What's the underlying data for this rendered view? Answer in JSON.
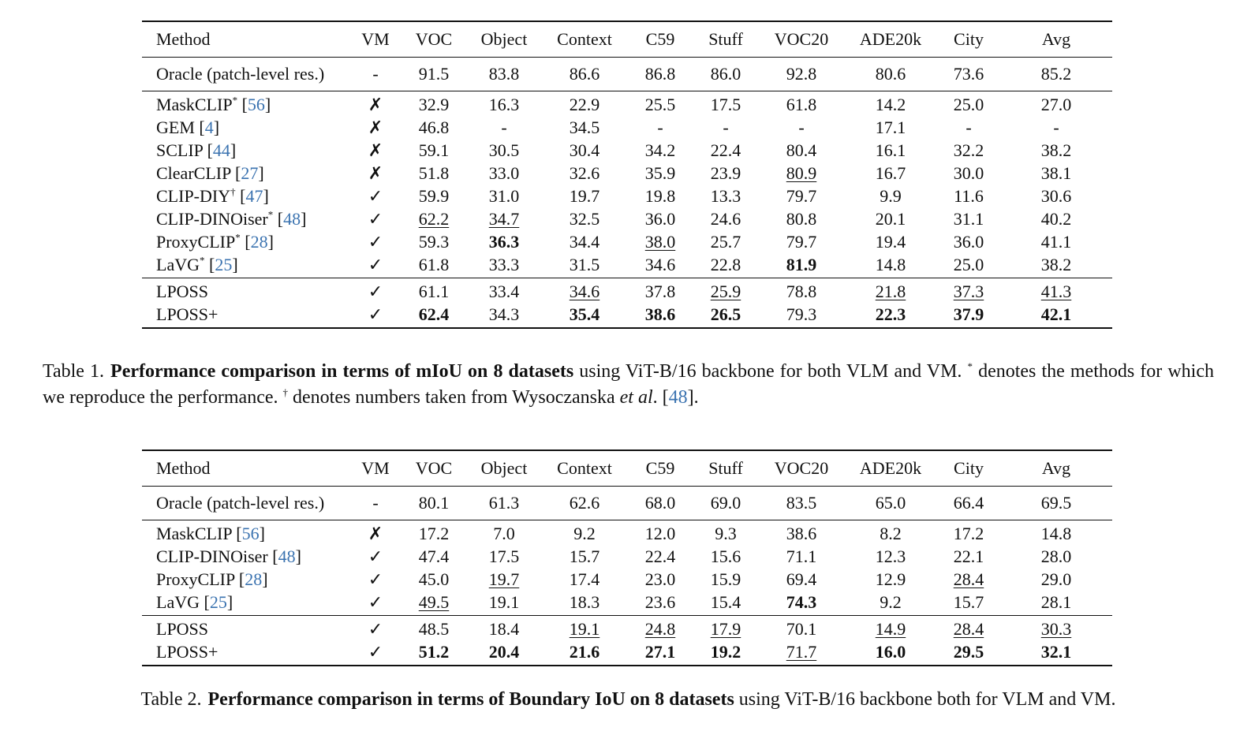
{
  "columns": [
    "Method",
    "VM",
    "VOC",
    "Object",
    "Context",
    "C59",
    "Stuff",
    "VOC20",
    "ADE20k",
    "City",
    "Avg"
  ],
  "table1": {
    "sections": [
      [
        {
          "name": "Oracle (patch-level res.)",
          "vm": "-",
          "vals": [
            "91.5",
            "83.8",
            "86.6",
            "86.8",
            "86.0",
            "92.8",
            "80.6",
            "73.6",
            "85.2"
          ],
          "bold": [],
          "under": []
        }
      ],
      [
        {
          "name": "MaskCLIP",
          "sup": "*",
          "ref": "56",
          "vm": "✗",
          "vals": [
            "32.9",
            "16.3",
            "22.9",
            "25.5",
            "17.5",
            "61.8",
            "14.2",
            "25.0",
            "27.0"
          ],
          "bold": [],
          "under": []
        },
        {
          "name": "GEM",
          "ref": "4",
          "vm": "✗",
          "vals": [
            "46.8",
            "-",
            "34.5",
            "-",
            "-",
            "-",
            "17.1",
            "-",
            "-"
          ],
          "bold": [],
          "under": []
        },
        {
          "name": "SCLIP",
          "ref": "44",
          "vm": "✗",
          "vals": [
            "59.1",
            "30.5",
            "30.4",
            "34.2",
            "22.4",
            "80.4",
            "16.1",
            "32.2",
            "38.2"
          ],
          "bold": [],
          "under": []
        },
        {
          "name": "ClearCLIP",
          "ref": "27",
          "vm": "✗",
          "vals": [
            "51.8",
            "33.0",
            "32.6",
            "35.9",
            "23.9",
            "80.9",
            "16.7",
            "30.0",
            "38.1"
          ],
          "bold": [],
          "under": [
            5
          ]
        },
        {
          "name": "CLIP-DIY",
          "sup": "†",
          "ref": "47",
          "vm": "✓",
          "vals": [
            "59.9",
            "31.0",
            "19.7",
            "19.8",
            "13.3",
            "79.7",
            "9.9",
            "11.6",
            "30.6"
          ],
          "bold": [],
          "under": []
        },
        {
          "name": "CLIP-DINOiser",
          "sup": "*",
          "ref": "48",
          "vm": "✓",
          "vals": [
            "62.2",
            "34.7",
            "32.5",
            "36.0",
            "24.6",
            "80.8",
            "20.1",
            "31.1",
            "40.2"
          ],
          "bold": [],
          "under": [
            0,
            1
          ]
        },
        {
          "name": "ProxyCLIP",
          "sup": "*",
          "ref": "28",
          "vm": "✓",
          "vals": [
            "59.3",
            "36.3",
            "34.4",
            "38.0",
            "25.7",
            "79.7",
            "19.4",
            "36.0",
            "41.1"
          ],
          "bold": [
            1
          ],
          "under": [
            3
          ]
        },
        {
          "name": "LaVG",
          "sup": "*",
          "ref": "25",
          "vm": "✓",
          "vals": [
            "61.8",
            "33.3",
            "31.5",
            "34.6",
            "22.8",
            "81.9",
            "14.8",
            "25.0",
            "38.2"
          ],
          "bold": [
            5
          ],
          "under": []
        }
      ],
      [
        {
          "name": "LPOSS",
          "vm": "✓",
          "vals": [
            "61.1",
            "33.4",
            "34.6",
            "37.8",
            "25.9",
            "78.8",
            "21.8",
            "37.3",
            "41.3"
          ],
          "bold": [],
          "under": [
            2,
            4,
            6,
            7,
            8
          ]
        },
        {
          "name": "LPOSS+",
          "vm": "✓",
          "vals": [
            "62.4",
            "34.3",
            "35.4",
            "38.6",
            "26.5",
            "79.3",
            "22.3",
            "37.9",
            "42.1"
          ],
          "bold": [
            0,
            2,
            3,
            4,
            6,
            7,
            8
          ],
          "under": []
        }
      ]
    ]
  },
  "table2": {
    "sections": [
      [
        {
          "name": "Oracle (patch-level res.)",
          "vm": "-",
          "vals": [
            "80.1",
            "61.3",
            "62.6",
            "68.0",
            "69.0",
            "83.5",
            "65.0",
            "66.4",
            "69.5"
          ],
          "bold": [],
          "under": []
        }
      ],
      [
        {
          "name": "MaskCLIP",
          "ref": "56",
          "vm": "✗",
          "vals": [
            "17.2",
            "7.0",
            "9.2",
            "12.0",
            "9.3",
            "38.6",
            "8.2",
            "17.2",
            "14.8"
          ],
          "bold": [],
          "under": []
        },
        {
          "name": "CLIP-DINOiser",
          "ref": "48",
          "vm": "✓",
          "vals": [
            "47.4",
            "17.5",
            "15.7",
            "22.4",
            "15.6",
            "71.1",
            "12.3",
            "22.1",
            "28.0"
          ],
          "bold": [],
          "under": []
        },
        {
          "name": "ProxyCLIP",
          "ref": "28",
          "vm": "✓",
          "vals": [
            "45.0",
            "19.7",
            "17.4",
            "23.0",
            "15.9",
            "69.4",
            "12.9",
            "28.4",
            "29.0"
          ],
          "bold": [],
          "under": [
            1,
            7
          ]
        },
        {
          "name": "LaVG",
          "ref": "25",
          "vm": "✓",
          "vals": [
            "49.5",
            "19.1",
            "18.3",
            "23.6",
            "15.4",
            "74.3",
            "9.2",
            "15.7",
            "28.1"
          ],
          "bold": [
            5
          ],
          "under": [
            0
          ]
        }
      ],
      [
        {
          "name": "LPOSS",
          "vm": "✓",
          "vals": [
            "48.5",
            "18.4",
            "19.1",
            "24.8",
            "17.9",
            "70.1",
            "14.9",
            "28.4",
            "30.3"
          ],
          "bold": [],
          "under": [
            2,
            3,
            4,
            6,
            7,
            8
          ]
        },
        {
          "name": "LPOSS+",
          "vm": "✓",
          "vals": [
            "51.2",
            "20.4",
            "21.6",
            "27.1",
            "19.2",
            "71.7",
            "16.0",
            "29.5",
            "32.1"
          ],
          "bold": [
            0,
            1,
            2,
            3,
            4,
            6,
            7,
            8
          ],
          "under": [
            5
          ]
        }
      ]
    ]
  },
  "caption1": {
    "label": "Table 1.",
    "bold": "Performance comparison in terms of mIoU on 8 datasets",
    "t1": " using ViT-B/16 backbone for both VLM and VM. ",
    "sym1": "*",
    "t2": " denotes the methods for which we reproduce the performance. ",
    "sym2": "†",
    "t3": " denotes numbers taken from Wysoczanska ",
    "etal": "et al",
    "t4": ". [",
    "ref": "48",
    "t5": "]."
  },
  "caption2": {
    "label": "Table 2.",
    "bold": "Performance comparison in terms of Boundary IoU on 8 datasets",
    "t1": " using ViT-B/16 backbone both for VLM and VM."
  }
}
